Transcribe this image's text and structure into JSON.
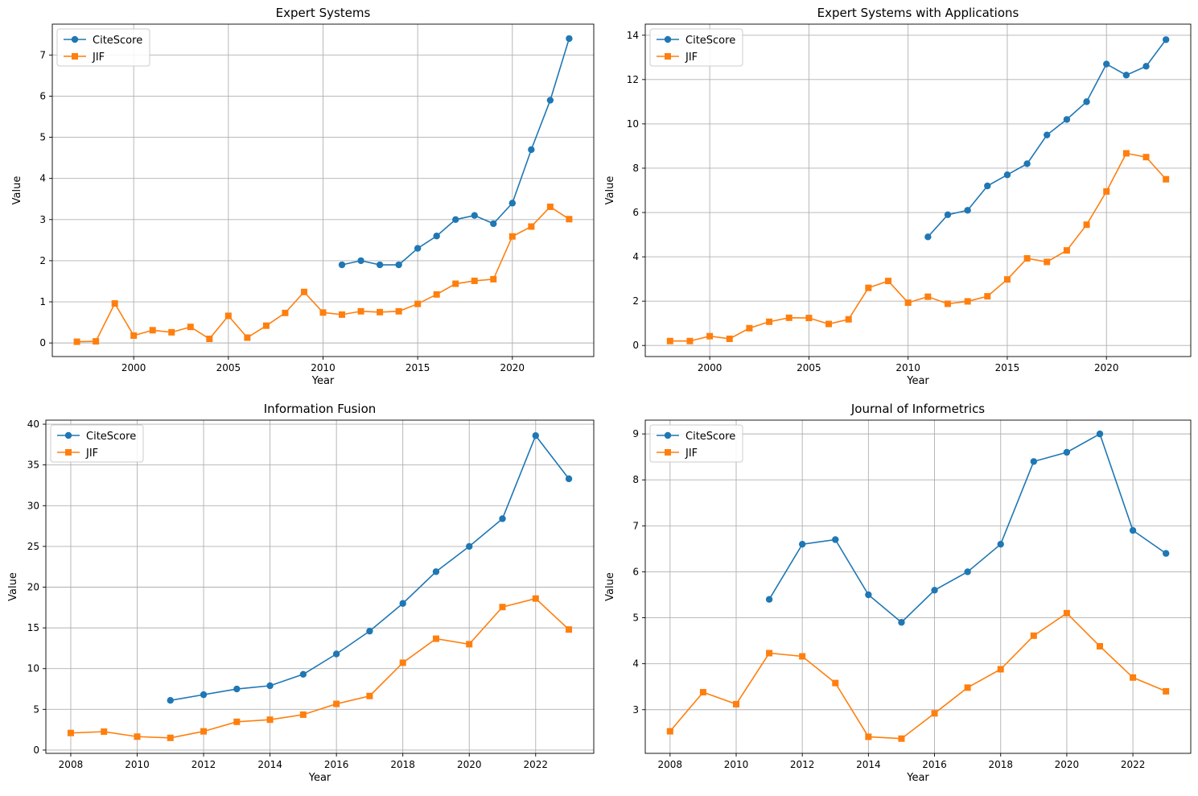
{
  "colors": {
    "citescore": "#1f77b4",
    "jif": "#ff7f0e"
  },
  "chart_data": [
    {
      "type": "line",
      "title": "Expert Systems",
      "xlabel": "Year",
      "ylabel": "Value",
      "xlim": [
        1995.7,
        2024.3
      ],
      "ylim": [
        -0.33,
        7.75
      ],
      "xticks": [
        2000,
        2005,
        2010,
        2015,
        2020
      ],
      "yticks": [
        0,
        1,
        2,
        3,
        4,
        5,
        6,
        7
      ],
      "grid": true,
      "legend": "upper-left",
      "series": [
        {
          "name": "CiteScore",
          "marker": "circle",
          "x": [
            2011,
            2012,
            2013,
            2014,
            2015,
            2016,
            2017,
            2018,
            2019,
            2020,
            2021,
            2022,
            2023
          ],
          "y": [
            1.9,
            2.0,
            1.9,
            1.9,
            2.3,
            2.6,
            3.0,
            3.1,
            2.9,
            3.4,
            4.7,
            5.9,
            7.4
          ]
        },
        {
          "name": "JIF",
          "marker": "square",
          "x": [
            1997,
            1998,
            1999,
            2000,
            2001,
            2002,
            2003,
            2004,
            2005,
            2006,
            2007,
            2008,
            2009,
            2010,
            2011,
            2012,
            2013,
            2014,
            2015,
            2016,
            2017,
            2018,
            2019,
            2020,
            2021,
            2022,
            2023
          ],
          "y": [
            0.03,
            0.04,
            0.96,
            0.18,
            0.31,
            0.26,
            0.39,
            0.1,
            0.66,
            0.13,
            0.42,
            0.73,
            1.24,
            0.74,
            0.69,
            0.77,
            0.75,
            0.77,
            0.95,
            1.18,
            1.44,
            1.51,
            1.55,
            2.59,
            2.83,
            3.31,
            3.01
          ]
        }
      ]
    },
    {
      "type": "line",
      "title": "Expert Systems with Applications",
      "xlabel": "Year",
      "ylabel": "Value",
      "xlim": [
        1996.75,
        2024.25
      ],
      "ylim": [
        -0.5,
        14.5
      ],
      "xticks": [
        2000,
        2005,
        2010,
        2015,
        2020
      ],
      "yticks": [
        0,
        2,
        4,
        6,
        8,
        10,
        12,
        14
      ],
      "grid": true,
      "legend": "upper-left",
      "series": [
        {
          "name": "CiteScore",
          "marker": "circle",
          "x": [
            2011,
            2012,
            2013,
            2014,
            2015,
            2016,
            2017,
            2018,
            2019,
            2020,
            2021,
            2022,
            2023
          ],
          "y": [
            4.9,
            5.9,
            6.1,
            7.2,
            7.7,
            8.2,
            9.5,
            10.2,
            11.0,
            12.7,
            12.2,
            12.6,
            13.8
          ]
        },
        {
          "name": "JIF",
          "marker": "square",
          "x": [
            1998,
            1999,
            2000,
            2001,
            2002,
            2003,
            2004,
            2005,
            2006,
            2007,
            2008,
            2009,
            2010,
            2011,
            2012,
            2013,
            2014,
            2015,
            2016,
            2017,
            2018,
            2019,
            2020,
            2021,
            2022,
            2023
          ],
          "y": [
            0.2,
            0.2,
            0.42,
            0.3,
            0.78,
            1.07,
            1.25,
            1.24,
            0.97,
            1.18,
            2.6,
            2.91,
            1.93,
            2.2,
            1.88,
            1.99,
            2.22,
            2.98,
            3.93,
            3.77,
            4.29,
            5.45,
            6.95,
            8.67,
            8.5,
            7.5
          ]
        }
      ]
    },
    {
      "type": "line",
      "title": "Information Fusion",
      "xlabel": "Year",
      "ylabel": "Value",
      "xlim": [
        2007.25,
        2023.75
      ],
      "ylim": [
        -0.4,
        40.5
      ],
      "xticks": [
        2008,
        2010,
        2012,
        2014,
        2016,
        2018,
        2020,
        2022
      ],
      "yticks": [
        0,
        5,
        10,
        15,
        20,
        25,
        30,
        35,
        40
      ],
      "grid": true,
      "legend": "upper-left",
      "series": [
        {
          "name": "CiteScore",
          "marker": "circle",
          "x": [
            2011,
            2012,
            2013,
            2014,
            2015,
            2016,
            2017,
            2018,
            2019,
            2020,
            2021,
            2022,
            2023
          ],
          "y": [
            6.1,
            6.8,
            7.5,
            7.9,
            9.3,
            11.8,
            14.6,
            18.0,
            21.9,
            25.0,
            28.4,
            38.6,
            33.3
          ]
        },
        {
          "name": "JIF",
          "marker": "square",
          "x": [
            2008,
            2009,
            2010,
            2011,
            2012,
            2013,
            2014,
            2015,
            2016,
            2017,
            2018,
            2019,
            2020,
            2021,
            2022,
            2023
          ],
          "y": [
            2.1,
            2.26,
            1.65,
            1.5,
            2.3,
            3.47,
            3.73,
            4.35,
            5.67,
            6.64,
            10.72,
            13.67,
            13.0,
            17.56,
            18.6,
            14.8
          ]
        }
      ]
    },
    {
      "type": "line",
      "title": "Journal of Informetrics",
      "xlabel": "Year",
      "ylabel": "Value",
      "xlim": [
        2007.25,
        2023.75
      ],
      "ylim": [
        2.05,
        9.3
      ],
      "xticks": [
        2008,
        2010,
        2012,
        2014,
        2016,
        2018,
        2020,
        2022
      ],
      "yticks": [
        3,
        4,
        5,
        6,
        7,
        8,
        9
      ],
      "grid": true,
      "legend": "upper-left",
      "series": [
        {
          "name": "CiteScore",
          "marker": "circle",
          "x": [
            2011,
            2012,
            2013,
            2014,
            2015,
            2016,
            2017,
            2018,
            2019,
            2020,
            2021,
            2022,
            2023
          ],
          "y": [
            5.4,
            6.6,
            6.7,
            5.5,
            4.9,
            5.6,
            6.0,
            6.6,
            8.4,
            8.6,
            9.0,
            6.9,
            6.4
          ]
        },
        {
          "name": "JIF",
          "marker": "square",
          "x": [
            2008,
            2009,
            2010,
            2011,
            2012,
            2013,
            2014,
            2015,
            2016,
            2017,
            2018,
            2019,
            2020,
            2021,
            2022,
            2023
          ],
          "y": [
            2.53,
            3.38,
            3.12,
            4.23,
            4.16,
            3.58,
            2.41,
            2.37,
            2.92,
            3.48,
            3.88,
            4.61,
            5.1,
            4.38,
            3.7,
            3.4
          ]
        }
      ]
    }
  ]
}
